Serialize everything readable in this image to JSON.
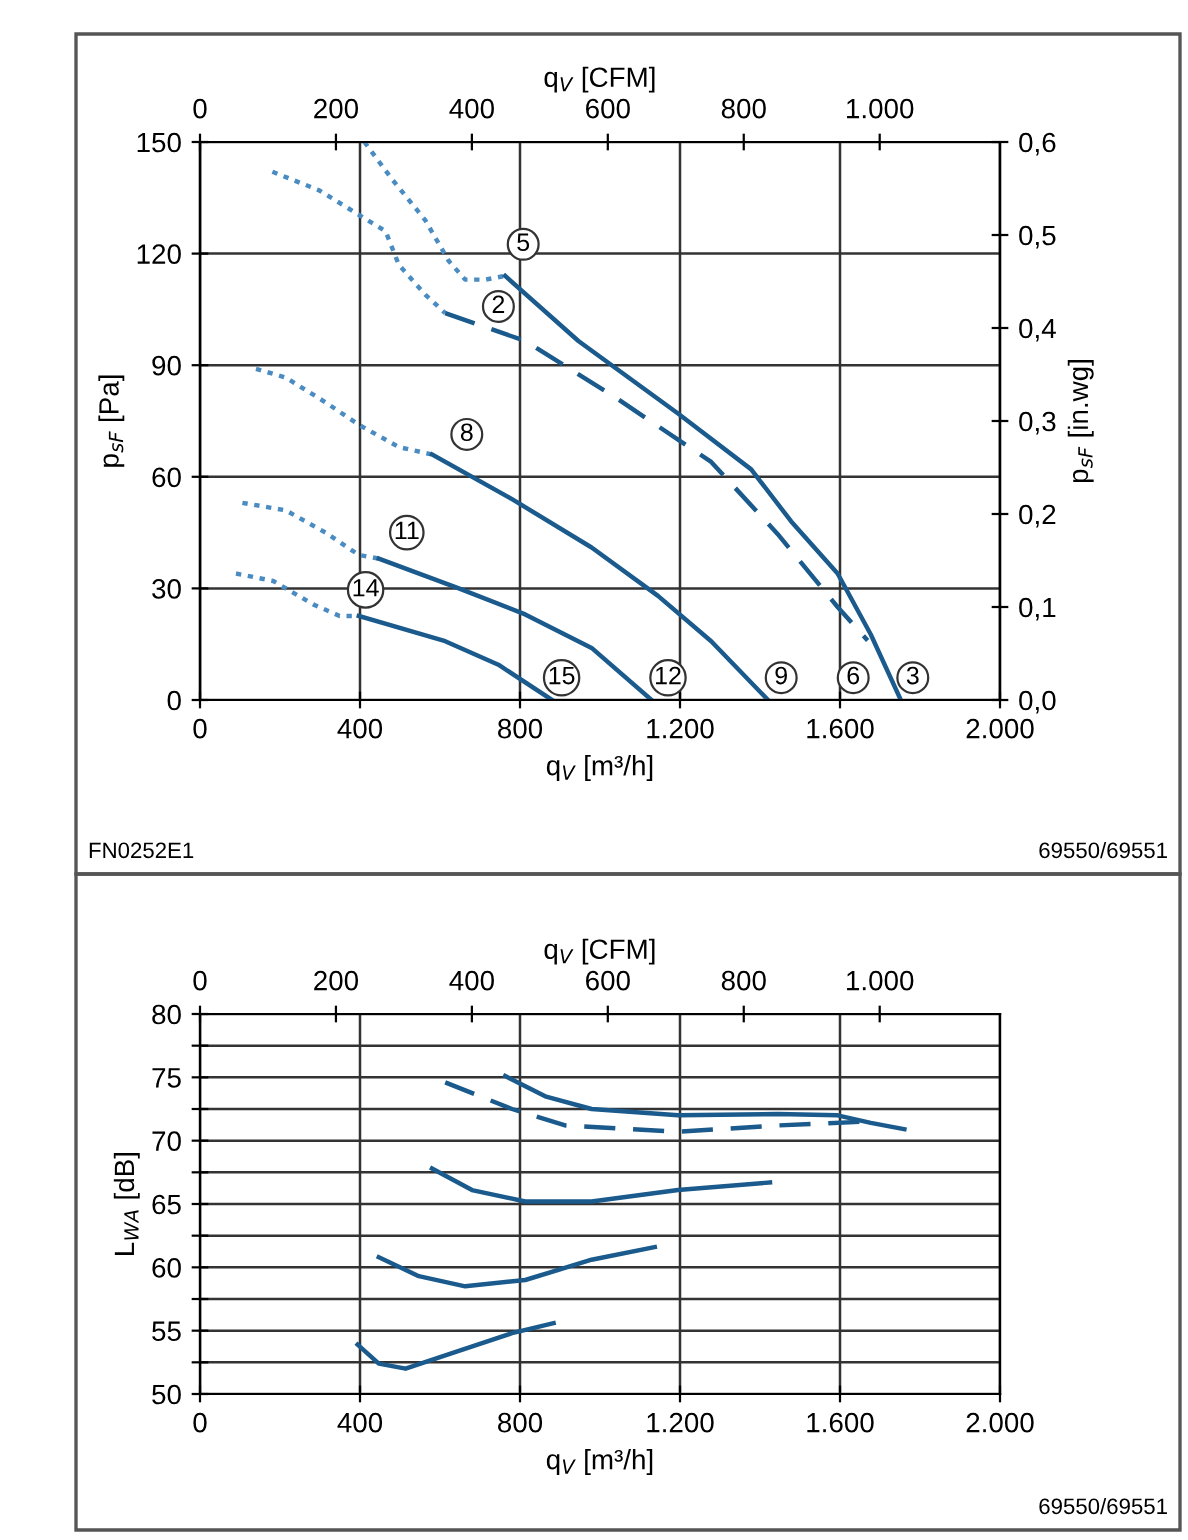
{
  "chart_data": [
    {
      "type": "line",
      "xlabel": "q$_{V}$ [m³/h]",
      "ylabel": "p$_{sF}$ [Pa]",
      "y2label": "p$_{sF}$ [in.wg]",
      "x2label": "q$_{V}$ [CFM]",
      "xlim": [
        0,
        2000
      ],
      "xticks": [
        0,
        400,
        800,
        {
          "value": 1200,
          "label": "1.200"
        },
        {
          "value": 1600,
          "label": "1.600"
        },
        {
          "value": 2000,
          "label": "2.000"
        }
      ],
      "ylim": [
        0,
        150
      ],
      "yticks": [
        0,
        30,
        60,
        90,
        120,
        150
      ],
      "y2lim": [
        0,
        0.6
      ],
      "y2ticks": [
        {
          "value": 0,
          "label": "0,0"
        },
        {
          "value": 0.1,
          "label": "0,1"
        },
        {
          "value": 0.2,
          "label": "0,2"
        },
        {
          "value": 0.3,
          "label": "0,3"
        },
        {
          "value": 0.4,
          "label": "0,4"
        },
        {
          "value": 0.5,
          "label": "0,5"
        },
        {
          "value": 0.6,
          "label": "0,6"
        }
      ],
      "x2lim": [
        0,
        1177
      ],
      "x2ticks": [
        0,
        200,
        400,
        600,
        800,
        {
          "value": 1000,
          "label": "1.000"
        }
      ],
      "grid": true,
      "legend": false,
      "series": [
        {
          "color": "#4a8cc2",
          "line_style": "dotted",
          "x": [
            411,
            480,
            563,
            622,
            663,
            713,
            763
          ],
          "values": [
            150,
            140,
            129,
            118,
            113,
            113,
            114
          ]
        },
        {
          "color": "#1a5a8c",
          "line_style": "solid",
          "x": [
            763,
            946,
            1195,
            1378,
            1478,
            1594,
            1677,
            1752
          ],
          "values": [
            114,
            96.5,
            77,
            62,
            48,
            34,
            17.6,
            0
          ]
        },
        {
          "color": "#4a8cc2",
          "line_style": "dotted",
          "x": [
            181,
            298,
            464,
            497,
            563,
            613
          ],
          "values": [
            142,
            137,
            126,
            117,
            109,
            104
          ]
        },
        {
          "color": "#1a5a8c",
          "line_style": "dashed",
          "x": [
            613,
            813,
            1029,
            1278,
            1445,
            1594,
            1669
          ],
          "values": [
            104,
            96.5,
            82,
            64,
            44.5,
            25,
            16
          ]
        },
        {
          "color": "#4a8cc2",
          "line_style": "dotted",
          "x": [
            140,
            214,
            314,
            397,
            497,
            580
          ],
          "values": [
            89,
            86.7,
            80,
            74,
            68,
            66
          ]
        },
        {
          "color": "#1a5a8c",
          "line_style": "solid",
          "x": [
            580,
            780,
            979,
            1145,
            1278,
            1420
          ],
          "values": [
            66,
            54,
            41,
            28,
            15.8,
            0
          ]
        },
        {
          "color": "#4a8cc2",
          "line_style": "dotted",
          "x": [
            106,
            214,
            314,
            397,
            447
          ],
          "values": [
            53,
            51,
            45,
            39,
            38
          ]
        },
        {
          "color": "#1a5a8c",
          "line_style": "solid",
          "x": [
            447,
            647,
            813,
            979,
            1129
          ],
          "values": [
            38,
            30,
            23,
            14,
            0
          ]
        },
        {
          "color": "#4a8cc2",
          "line_style": "dotted",
          "x": [
            90,
            183,
            283,
            349,
            397
          ],
          "values": [
            34,
            32,
            25.7,
            22.6,
            22.6
          ]
        },
        {
          "color": "#1a5a8c",
          "line_style": "solid",
          "x": [
            397,
            613,
            746,
            880
          ],
          "values": [
            22.6,
            15.8,
            9.5,
            0
          ]
        }
      ],
      "annotations": [
        {
          "text": "5",
          "x": 808,
          "y": 122.5
        },
        {
          "text": "2",
          "x": 746,
          "y": 105.8
        },
        {
          "text": "8",
          "x": 667,
          "y": 71.4
        },
        {
          "text": "11",
          "x": 517,
          "y": 45
        },
        {
          "text": "14",
          "x": 414,
          "y": 29.6
        },
        {
          "text": "15",
          "x": 904,
          "y": 6
        },
        {
          "text": "12",
          "x": 1170,
          "y": 6
        },
        {
          "text": "9",
          "x": 1453,
          "y": 6
        },
        {
          "text": "6",
          "x": 1633,
          "y": 6
        },
        {
          "text": "3",
          "x": 1782,
          "y": 6
        },
        "FN0252E1",
        "69550/69551"
      ]
    },
    {
      "type": "line",
      "xlabel": "q$_{V}$ [m³/h]",
      "ylabel": "L$_{WA}$ [dB]",
      "x2label": "q$_{V}$ [CFM]",
      "xlim": [
        0,
        2000
      ],
      "xticks": [
        0,
        400,
        800,
        {
          "value": 1200,
          "label": "1.200"
        },
        {
          "value": 1600,
          "label": "1.600"
        },
        {
          "value": 2000,
          "label": "2.000"
        }
      ],
      "ylim": [
        50,
        80
      ],
      "yticks": [
        50,
        {
          "value": 52.5,
          "label": null
        },
        55,
        {
          "value": 57.5,
          "label": null
        },
        60,
        {
          "value": 62.5,
          "label": null
        },
        65,
        {
          "value": 67.5,
          "label": null
        },
        70,
        {
          "value": 72.5,
          "label": null
        },
        75,
        {
          "value": 77.5,
          "label": null
        },
        80
      ],
      "x2lim": [
        0,
        1177
      ],
      "x2ticks": [
        0,
        200,
        400,
        600,
        800,
        {
          "value": 1000,
          "label": "1.000"
        }
      ],
      "grid": true,
      "legend": false,
      "series": [
        {
          "color": "#1a5a8c",
          "line_style": "solid",
          "x": [
            763,
            863,
            979,
            1195,
            1445,
            1594,
            1677,
            1761
          ],
          "values": [
            75.1,
            73.5,
            72.5,
            72.0,
            72.1,
            72.0,
            71.4,
            70.9
          ]
        },
        {
          "color": "#1a5a8c",
          "line_style": "dashed",
          "x": [
            613,
            780,
            913,
            1195,
            1445,
            1661
          ],
          "values": [
            74.6,
            72.5,
            71.2,
            70.7,
            71.2,
            71.5
          ]
        },
        {
          "color": "#1a5a8c",
          "line_style": "solid",
          "x": [
            580,
            680,
            813,
            979,
            1195,
            1425
          ],
          "values": [
            67.8,
            66.1,
            65.2,
            65.2,
            66.1,
            66.7
          ]
        },
        {
          "color": "#1a5a8c",
          "line_style": "solid",
          "x": [
            447,
            547,
            663,
            813,
            979,
            1137
          ],
          "values": [
            60.8,
            59.3,
            58.5,
            59.0,
            60.6,
            61.6
          ]
        },
        {
          "color": "#1a5a8c",
          "line_style": "solid",
          "x": [
            394,
            447,
            514,
            647,
            780,
            884
          ],
          "values": [
            53.9,
            52.4,
            52.0,
            53.4,
            54.8,
            55.6
          ]
        }
      ],
      "annotations": [
        "69550/69551"
      ]
    }
  ]
}
